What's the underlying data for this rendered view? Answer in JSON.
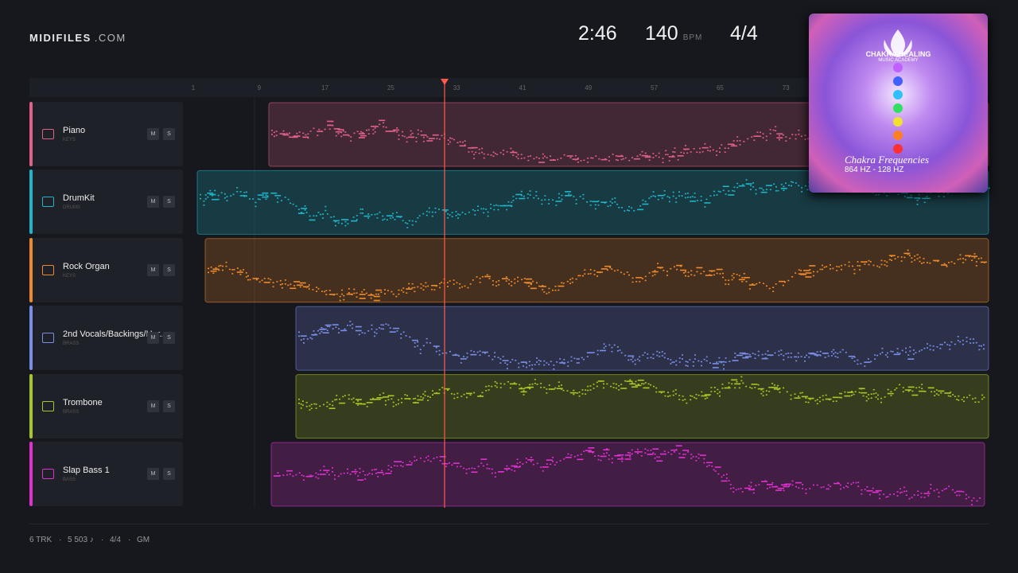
{
  "header": {
    "brand": "MIDIFILES",
    "brand_suffix": ".COM",
    "time": "2:46",
    "tempo": "140",
    "tempo_unit": "BPM",
    "meter": "4/4"
  },
  "ruler": {
    "bars": [
      1,
      9,
      17,
      25,
      33,
      41,
      49,
      57,
      65,
      73
    ]
  },
  "tracks": [
    {
      "name": "Piano",
      "category": "KEYS",
      "mute": "M",
      "solo": "S",
      "color": "#e0608a"
    },
    {
      "name": "DrumKit",
      "category": "DRUMS",
      "mute": "M",
      "solo": "S",
      "color": "#1fb5c8"
    },
    {
      "name": "Rock Organ",
      "category": "KEYS",
      "mute": "M",
      "solo": "S",
      "color": "#ef8a2a"
    },
    {
      "name": "2nd Vocals/Backings/Har...",
      "category": "BRASS",
      "mute": "M",
      "solo": "S",
      "color": "#7a8ee8"
    },
    {
      "name": "Trombone",
      "category": "BRASS",
      "mute": "M",
      "solo": "S",
      "color": "#a8c626"
    },
    {
      "name": "Slap Bass 1",
      "category": "BASS",
      "mute": "M",
      "solo": "S",
      "color": "#e030d0"
    }
  ],
  "album": {
    "logo": "CHAKRA HEALING",
    "logo_sub": "MUSIC ACADEMY",
    "title": "Chakra Frequencies",
    "subtitle": "864 HZ - 128 HZ"
  },
  "footer": {
    "tracks": "6 TRK",
    "separator": "·",
    "notes": "5 503 ♪",
    "meter": "4/4",
    "standard": "GM"
  }
}
